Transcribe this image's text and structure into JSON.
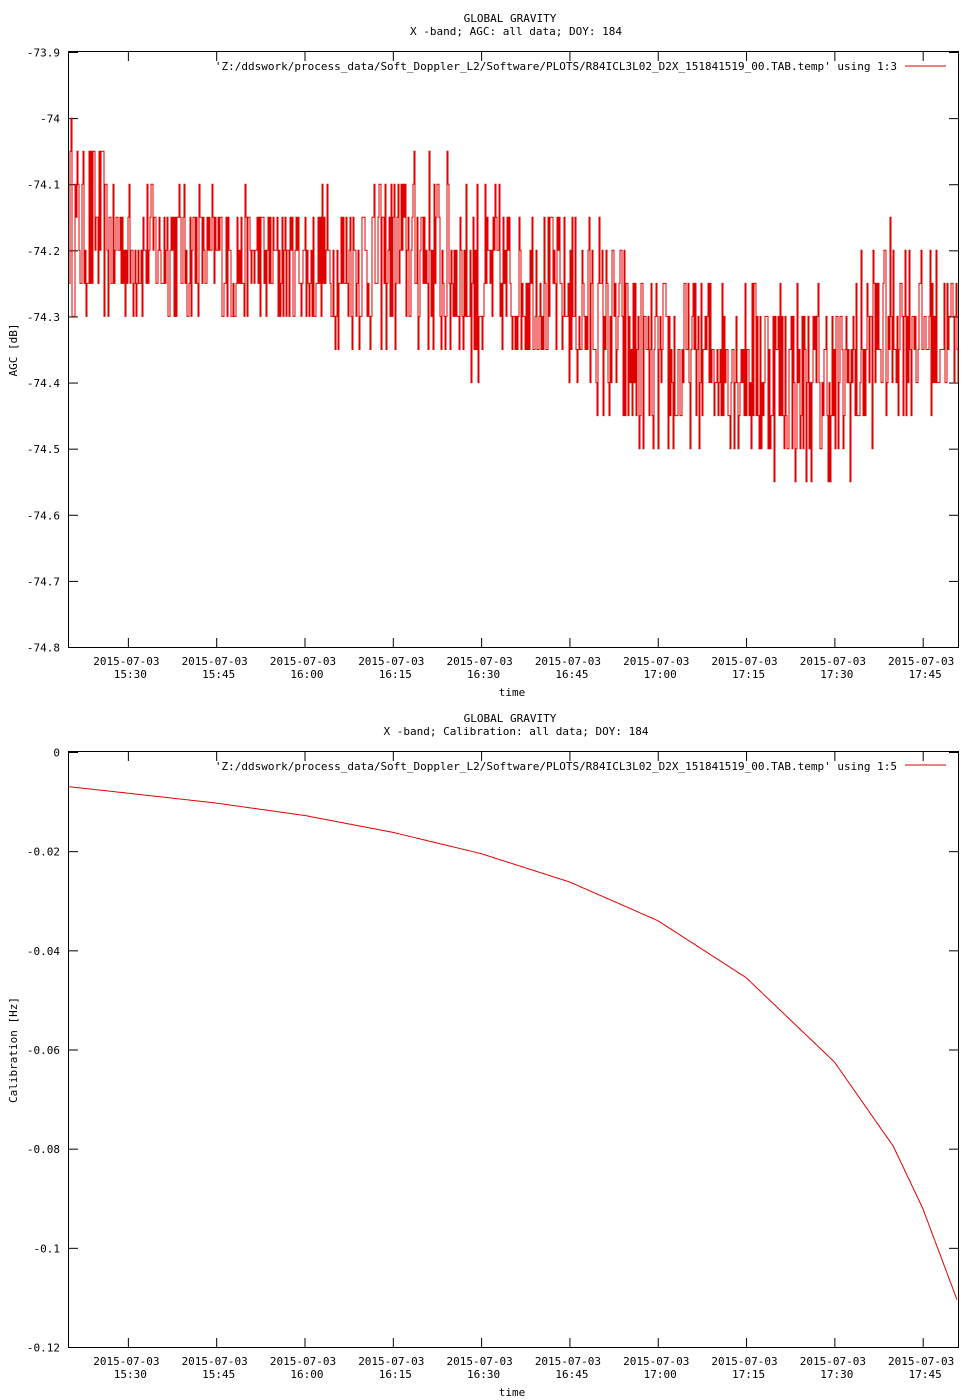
{
  "chart_data": [
    {
      "type": "line",
      "title": "GLOBAL GRAVITY",
      "subtitle": "X -band; AGC: all data; DOY: 184",
      "xlabel": "time",
      "ylabel": "AGC [dB]",
      "ylim": [
        -74.8,
        -73.9
      ],
      "yticks": [
        "-73.9",
        "-74",
        "-74.1",
        "-74.2",
        "-74.3",
        "-74.4",
        "-74.5",
        "-74.6",
        "-74.7",
        "-74.8"
      ],
      "yticks_values": [
        -73.9,
        -74.0,
        -74.1,
        -74.2,
        -74.3,
        -74.4,
        -74.5,
        -74.6,
        -74.7,
        -74.8
      ],
      "xlim": [
        "2015-07-03 15:20",
        "2015-07-03 17:51"
      ],
      "xticks_date": [
        "2015-07-03",
        "2015-07-03",
        "2015-07-03",
        "2015-07-03",
        "2015-07-03",
        "2015-07-03",
        "2015-07-03",
        "2015-07-03",
        "2015-07-03",
        "2015-07-03"
      ],
      "xticks_time": [
        "15:30",
        "15:45",
        "16:00",
        "16:15",
        "16:30",
        "16:45",
        "17:00",
        "17:15",
        "17:30",
        "17:45"
      ],
      "legend": "'Z:/ddswork/process_data/Soft_Doppler_L2/Software/PLOTS/R84ICL3L02_D2X_151841519_00.TAB.temp' using 1:3",
      "legend_position": "top-right",
      "series_color": "#e00000",
      "series": [
        {
          "x": [
            "2015-07-03 15:20",
            "2015-07-03 15:30",
            "2015-07-03 15:40",
            "2015-07-03 15:50",
            "2015-07-03 16:00",
            "2015-07-03 16:10",
            "2015-07-03 16:20",
            "2015-07-03 16:30",
            "2015-07-03 16:40",
            "2015-07-03 16:50",
            "2015-07-03 17:00",
            "2015-07-03 17:10",
            "2015-07-03 17:20",
            "2015-07-03 17:30",
            "2015-07-03 17:40",
            "2015-07-03 17:51"
          ],
          "y": [
            -74.15,
            -74.2,
            -74.2,
            -74.22,
            -74.22,
            -74.22,
            -74.2,
            -74.25,
            -74.25,
            -74.3,
            -74.4,
            -74.35,
            -74.38,
            -74.42,
            -74.3,
            -74.33
          ],
          "noise": [
            0.15,
            0.1,
            0.1,
            0.1,
            0.1,
            0.12,
            0.15,
            0.15,
            0.12,
            0.15,
            0.15,
            0.13,
            0.15,
            0.15,
            0.15,
            0.1
          ]
        }
      ]
    },
    {
      "type": "line",
      "title": "GLOBAL GRAVITY",
      "subtitle": "X -band; Calibration: all data; DOY: 184",
      "xlabel": "time",
      "ylabel": "Calibration [Hz]",
      "ylim": [
        -0.12,
        0
      ],
      "yticks": [
        "0",
        "-0.02",
        "-0.04",
        "-0.06",
        "-0.08",
        "-0.1",
        "-0.12"
      ],
      "yticks_values": [
        0,
        -0.02,
        -0.04,
        -0.06,
        -0.08,
        -0.1,
        -0.12
      ],
      "xlim": [
        "2015-07-03 15:20",
        "2015-07-03 17:51"
      ],
      "xticks_date": [
        "2015-07-03",
        "2015-07-03",
        "2015-07-03",
        "2015-07-03",
        "2015-07-03",
        "2015-07-03",
        "2015-07-03",
        "2015-07-03",
        "2015-07-03",
        "2015-07-03"
      ],
      "xticks_time": [
        "15:30",
        "15:45",
        "16:00",
        "16:15",
        "16:30",
        "16:45",
        "17:00",
        "17:15",
        "17:30",
        "17:45"
      ],
      "legend": "'Z:/ddswork/process_data/Soft_Doppler_L2/Software/PLOTS/R84ICL3L02_D2X_151841519_00.TAB.temp' using 1:5",
      "legend_position": "top-right",
      "series_color": "#e00000",
      "series": [
        {
          "x": [
            "2015-07-03 15:20",
            "2015-07-03 15:30",
            "2015-07-03 15:45",
            "2015-07-03 16:00",
            "2015-07-03 16:15",
            "2015-07-03 16:30",
            "2015-07-03 16:45",
            "2015-07-03 17:00",
            "2015-07-03 17:15",
            "2015-07-03 17:30",
            "2015-07-03 17:40",
            "2015-07-03 17:45",
            "2015-07-03 17:51"
          ],
          "y": [
            -0.007,
            -0.0083,
            -0.0103,
            -0.0128,
            -0.0162,
            -0.0205,
            -0.0262,
            -0.034,
            -0.0455,
            -0.0625,
            -0.0795,
            -0.092,
            -0.111
          ]
        }
      ]
    }
  ]
}
